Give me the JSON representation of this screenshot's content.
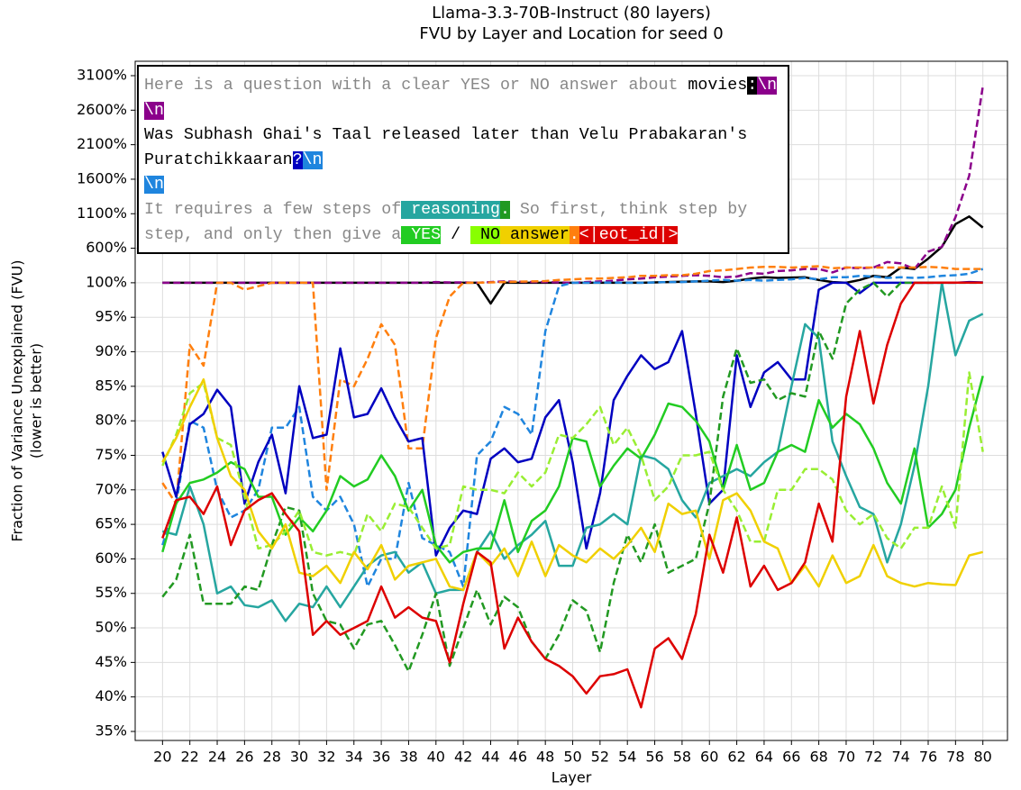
{
  "chart_data": {
    "type": "line",
    "title": [
      "Llama-3.3-70B-Instruct (80 layers)",
      "FVU by Layer and Location for seed 0"
    ],
    "xlabel": "Layer",
    "ylabel": [
      "Fraction of Variance Unexplained (FVU)",
      "(lower is better)"
    ],
    "x": [
      20,
      21,
      22,
      23,
      24,
      25,
      26,
      27,
      28,
      29,
      30,
      31,
      32,
      33,
      34,
      35,
      36,
      37,
      38,
      39,
      40,
      41,
      42,
      43,
      44,
      45,
      46,
      47,
      48,
      49,
      50,
      51,
      52,
      53,
      54,
      55,
      56,
      57,
      58,
      59,
      60,
      61,
      62,
      63,
      64,
      65,
      66,
      67,
      68,
      69,
      70,
      71,
      72,
      73,
      74,
      75,
      76,
      77,
      78,
      79,
      80
    ],
    "xlim": [
      18,
      81.8
    ],
    "xticks": [
      20,
      22,
      24,
      26,
      28,
      30,
      32,
      34,
      36,
      38,
      40,
      42,
      44,
      46,
      48,
      50,
      52,
      54,
      56,
      58,
      60,
      62,
      64,
      66,
      68,
      70,
      72,
      74,
      76,
      78,
      80
    ],
    "ylim": [
      35,
      3100
    ],
    "yticks": [
      {
        "value": 35,
        "label": "35%"
      },
      {
        "value": 40,
        "label": "40%"
      },
      {
        "value": 45,
        "label": "45%"
      },
      {
        "value": 50,
        "label": "50%"
      },
      {
        "value": 55,
        "label": "55%"
      },
      {
        "value": 60,
        "label": "60%"
      },
      {
        "value": 65,
        "label": "65%"
      },
      {
        "value": 70,
        "label": "70%"
      },
      {
        "value": 75,
        "label": "75%"
      },
      {
        "value": 80,
        "label": "80%"
      },
      {
        "value": 85,
        "label": "85%"
      },
      {
        "value": 90,
        "label": "90%"
      },
      {
        "value": 95,
        "label": "95%"
      },
      {
        "value": 100,
        "label": "100%"
      },
      {
        "value": 600,
        "label": "600%"
      },
      {
        "value": 1100,
        "label": "1100%"
      },
      {
        "value": 1600,
        "label": "1600%"
      },
      {
        "value": 2100,
        "label": "2100%"
      },
      {
        "value": 2600,
        "label": "2600%"
      },
      {
        "value": 3100,
        "label": "3100%"
      }
    ],
    "grid": true,
    "series": [
      {
        "color": "#000000",
        "dashed": false,
        "values": [
          100,
          100,
          100,
          100,
          100,
          100,
          100,
          100,
          100,
          100,
          100,
          100,
          100,
          100,
          100,
          100,
          100,
          100,
          100,
          100,
          100,
          100,
          100,
          100,
          97,
          100,
          100,
          100,
          100,
          100,
          100,
          100,
          100,
          100,
          100,
          100,
          105,
          110,
          115,
          120,
          120,
          110,
          130,
          160,
          180,
          170,
          175,
          180,
          140,
          110,
          100,
          140,
          200,
          180,
          320,
          300,
          450,
          620,
          950,
          1060,
          900
        ]
      },
      {
        "color": "#8b008b",
        "dashed": true,
        "values": [
          100,
          100,
          100,
          100,
          100,
          100,
          100,
          100,
          100,
          100,
          100,
          100,
          100,
          100,
          100,
          100,
          100,
          100,
          100,
          100,
          110,
          105,
          105,
          100,
          110,
          120,
          115,
          110,
          110,
          105,
          100,
          110,
          120,
          130,
          150,
          160,
          180,
          190,
          200,
          210,
          200,
          180,
          190,
          240,
          230,
          270,
          280,
          300,
          300,
          250,
          320,
          310,
          320,
          400,
          380,
          300,
          550,
          620,
          1050,
          1650,
          2950
        ]
      },
      {
        "color": "#ff7f0e",
        "dashed": true,
        "values": [
          71,
          68,
          91,
          88,
          100,
          100,
          99,
          99.5,
          100,
          100,
          100,
          100,
          70,
          86,
          85,
          89,
          94,
          91,
          76,
          76,
          92,
          98,
          100,
          100,
          105,
          110,
          115,
          120,
          125,
          140,
          150,
          160,
          160,
          170,
          180,
          200,
          200,
          210,
          210,
          230,
          270,
          280,
          300,
          320,
          330,
          330,
          320,
          330,
          340,
          310,
          320,
          320,
          320,
          320,
          320,
          320,
          330,
          320,
          300,
          300,
          300
        ]
      },
      {
        "color": "#1f85de",
        "dashed": true,
        "values": [
          62,
          68,
          80,
          79,
          70,
          66,
          67,
          70,
          79,
          79,
          82,
          69,
          67,
          69,
          65,
          56,
          60,
          60,
          71,
          63,
          62,
          61,
          56,
          75,
          77,
          82,
          81,
          78,
          93,
          99.5,
          100,
          100,
          102,
          104,
          100,
          100,
          105,
          110,
          110,
          120,
          130,
          140,
          130,
          140,
          130,
          140,
          150,
          170,
          150,
          180,
          180,
          200,
          190,
          170,
          180,
          170,
          180,
          200,
          210,
          230,
          300
        ]
      },
      {
        "color": "#0000c0",
        "dashed": false,
        "values": [
          75.5,
          69,
          79.5,
          81,
          84.5,
          82,
          68,
          74,
          78,
          69.5,
          85,
          77.5,
          78,
          90.5,
          80.5,
          81,
          84.7,
          80.5,
          77,
          77.5,
          60.5,
          64.5,
          67,
          66.5,
          74.5,
          76,
          74,
          74.5,
          80.5,
          83,
          74,
          61.5,
          69.5,
          83,
          86.5,
          89.5,
          87.5,
          88.5,
          93,
          81,
          68,
          70,
          89.5,
          82,
          87,
          88.5,
          86,
          86,
          99,
          100,
          100,
          98.5,
          100,
          100,
          100,
          100,
          100,
          100,
          100,
          110,
          105
        ]
      },
      {
        "color": "#26a6a0",
        "dashed": false,
        "values": [
          64,
          63.5,
          70.5,
          65,
          55,
          56,
          53.3,
          53,
          54,
          51,
          53.5,
          53,
          56,
          53,
          56,
          59,
          60.5,
          61,
          58,
          59.5,
          55,
          55.5,
          55.5,
          61,
          64,
          60,
          62,
          63.5,
          65.5,
          59,
          59,
          64.5,
          65,
          66.5,
          65,
          75,
          74.5,
          73,
          68.5,
          66,
          71,
          72,
          73,
          72,
          74,
          75.5,
          85,
          94,
          92,
          77,
          72,
          67.5,
          66.5,
          59.5,
          65,
          73.5,
          85,
          100,
          89.5,
          94.5,
          95.5
        ]
      },
      {
        "color": "#229922",
        "dashed": true,
        "values": [
          54.5,
          57,
          63.5,
          53.5,
          53.5,
          53.5,
          56,
          55.5,
          62,
          67.5,
          67,
          55,
          51,
          50.5,
          47,
          50.5,
          51,
          47.5,
          43.7,
          49,
          55,
          44.5,
          50,
          55.5,
          50.5,
          54.5,
          53,
          48,
          45.5,
          49,
          54,
          52.5,
          46.5,
          56.5,
          63.5,
          59.5,
          65,
          58,
          59,
          60,
          68,
          83.5,
          90.5,
          85.5,
          86,
          83,
          84,
          83.5,
          93,
          89,
          97,
          99,
          100,
          98,
          100,
          100.5,
          100.5,
          100.5,
          100.5,
          100.5,
          100.5
        ]
      },
      {
        "color": "#22cc22",
        "dashed": false,
        "values": [
          61,
          68,
          71,
          71.5,
          72.5,
          74,
          73,
          69,
          69,
          63.5,
          66,
          64,
          67,
          72,
          70.5,
          71.5,
          75,
          72,
          67,
          70,
          62,
          59.5,
          61,
          61.5,
          61.5,
          68.5,
          61,
          65.5,
          67,
          70.5,
          77.5,
          77,
          70.5,
          73.5,
          76,
          74.5,
          78,
          82.5,
          82,
          80,
          77,
          70,
          76.5,
          70,
          71,
          75.5,
          76.5,
          75.5,
          83,
          79,
          81,
          79.5,
          76,
          71,
          68,
          76,
          64.5,
          66.5,
          70,
          79,
          86.5
        ]
      },
      {
        "color": "#99ee33",
        "dashed": true,
        "values": [
          73.5,
          78,
          84,
          85.5,
          77.5,
          76.5,
          69,
          61.5,
          62,
          64,
          67,
          61,
          60.5,
          61,
          60.5,
          66.5,
          64,
          68,
          67.5,
          64.5,
          61.5,
          62,
          70.5,
          70,
          70,
          69.5,
          72.5,
          70.5,
          72.5,
          78,
          77.5,
          79.5,
          82,
          76.5,
          79,
          75,
          68.5,
          70.5,
          75,
          75,
          75.5,
          70,
          67,
          62.5,
          62.5,
          70,
          70,
          73,
          73,
          71.5,
          67,
          65,
          66.5,
          63,
          61.5,
          64.5,
          64.5,
          70.5,
          64.5,
          87,
          75.5
        ]
      },
      {
        "color": "#f0d000",
        "dashed": false,
        "values": [
          74,
          77.5,
          82,
          86,
          77.5,
          72,
          70,
          64,
          61.5,
          65,
          58,
          57.5,
          59,
          56.5,
          61,
          58.5,
          62,
          57,
          59,
          59.5,
          60,
          56,
          55.5,
          61,
          59,
          61.5,
          57.5,
          62.5,
          57.5,
          62,
          60.5,
          59.5,
          61.5,
          60,
          62,
          64.5,
          61,
          68,
          66.5,
          67,
          60,
          68.5,
          69.5,
          67,
          62.5,
          61.5,
          56.5,
          59,
          56,
          60.5,
          56.5,
          57.5,
          62,
          57.5,
          56.5,
          56,
          56.5,
          56.3,
          56.2,
          60.5,
          61
        ]
      },
      {
        "color": "#dd0000",
        "dashed": false,
        "values": [
          63,
          68.5,
          69,
          66.5,
          70.5,
          62,
          67,
          68.5,
          69.5,
          66.5,
          64,
          49,
          51,
          49,
          50,
          51,
          56,
          51.5,
          53,
          51.5,
          51,
          45,
          53.5,
          61,
          59.5,
          47,
          51.5,
          48,
          45.5,
          44.5,
          43,
          40.5,
          43,
          43.3,
          44,
          38.5,
          47,
          48.5,
          45.5,
          52,
          63.5,
          58,
          66,
          56,
          59,
          55.5,
          56.5,
          59.5,
          68,
          62.5,
          83.5,
          93,
          82.5,
          91,
          97,
          100,
          100.5,
          101,
          101,
          101,
          101
        ]
      }
    ],
    "prompt": [
      [
        {
          "text": "Here is a question with a clear YES or NO answer about ",
          "fg": "#888888",
          "bg": null
        },
        {
          "text": "movies",
          "fg": "#000000",
          "bg": null
        },
        {
          "text": ":",
          "fg": "#ffffff",
          "bg": "#000000"
        },
        {
          "text": "\\n",
          "fg": "#ffffff",
          "bg": "#8b008b"
        }
      ],
      [
        {
          "text": "\\n",
          "fg": "#ffffff",
          "bg": "#8b008b"
        }
      ],
      [
        {
          "text": "Was Subhash Ghai's Taal released later than Velu Prabakaran's",
          "fg": "#000000",
          "bg": null
        }
      ],
      [
        {
          "text": "Puratchikkaaran",
          "fg": "#000000",
          "bg": null
        },
        {
          "text": "?",
          "fg": "#ffffff",
          "bg": "#0000c0"
        },
        {
          "text": "\\n",
          "fg": "#ffffff",
          "bg": "#1f85de"
        }
      ],
      [
        {
          "text": "\\n",
          "fg": "#ffffff",
          "bg": "#1f85de"
        }
      ],
      [
        {
          "text": "It requires a few steps of",
          "fg": "#888888",
          "bg": null
        },
        {
          "text": " reasoning",
          "fg": "#ffffff",
          "bg": "#26a6a0"
        },
        {
          "text": ".",
          "fg": "#ffffff",
          "bg": "#229922"
        },
        {
          "text": " So first, think step by",
          "fg": "#888888",
          "bg": null
        }
      ],
      [
        {
          "text": "step, and only then give a",
          "fg": "#888888",
          "bg": null
        },
        {
          "text": " YES",
          "fg": "#ffffff",
          "bg": "#22cc22"
        },
        {
          "text": " / ",
          "fg": "#000000",
          "bg": null
        },
        {
          "text": " NO",
          "fg": "#000000",
          "bg": "#88ff00"
        },
        {
          "text": " answer",
          "fg": "#000000",
          "bg": "#f0d000"
        },
        {
          "text": ".",
          "fg": "#ffffff",
          "bg": "#ff7f0e"
        },
        {
          "text": "<|eot_id|>",
          "fg": "#ffffff",
          "bg": "#dd0000"
        }
      ]
    ]
  }
}
